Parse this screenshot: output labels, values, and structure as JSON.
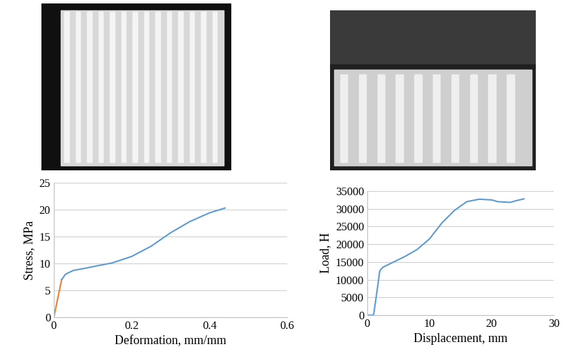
{
  "chart_data": [
    {
      "type": "line",
      "x_label": "Deformation, mm/mm",
      "y_label": "Stress, MPa",
      "series": [
        {
          "color": "#ed7d31",
          "x": [
            0,
            0.01,
            0.02
          ],
          "values": [
            0,
            3.5,
            7
          ]
        },
        {
          "color": "#5b9bd5",
          "x": [
            0.02,
            0.03,
            0.05,
            0.08,
            0.1,
            0.15,
            0.2,
            0.25,
            0.3,
            0.35,
            0.4,
            0.44
          ],
          "values": [
            7,
            8,
            8.7,
            9.1,
            9.4,
            10.1,
            11.3,
            13.2,
            15.7,
            17.8,
            19.4,
            20.3
          ]
        }
      ],
      "xlim": [
        0,
        0.6
      ],
      "xticks": [
        0,
        0.2,
        0.4,
        0.6
      ],
      "ylim": [
        0,
        25
      ],
      "yticks": [
        0,
        5,
        10,
        15,
        20,
        25
      ],
      "grid": true
    },
    {
      "type": "line",
      "x_label": "Displacement, mm",
      "y_label": "Load, H",
      "series": [
        {
          "color": "#5b9bd5",
          "x": [
            0,
            1.0,
            1.5,
            2,
            2.5,
            4,
            6,
            8,
            10,
            12,
            14,
            16,
            18,
            19,
            20,
            21,
            22,
            23,
            24,
            25.2
          ],
          "values": [
            0,
            0,
            6000,
            12500,
            13500,
            14800,
            16500,
            18500,
            21500,
            26000,
            29500,
            32000,
            32700,
            32600,
            32500,
            32000,
            31900,
            31800,
            32300,
            32800
          ]
        }
      ],
      "xlim": [
        0,
        30
      ],
      "xticks": [
        0,
        10,
        20,
        30
      ],
      "ylim": [
        0,
        35000
      ],
      "yticks": [
        0,
        5000,
        10000,
        15000,
        20000,
        25000,
        30000,
        35000
      ],
      "grid": true
    }
  ]
}
